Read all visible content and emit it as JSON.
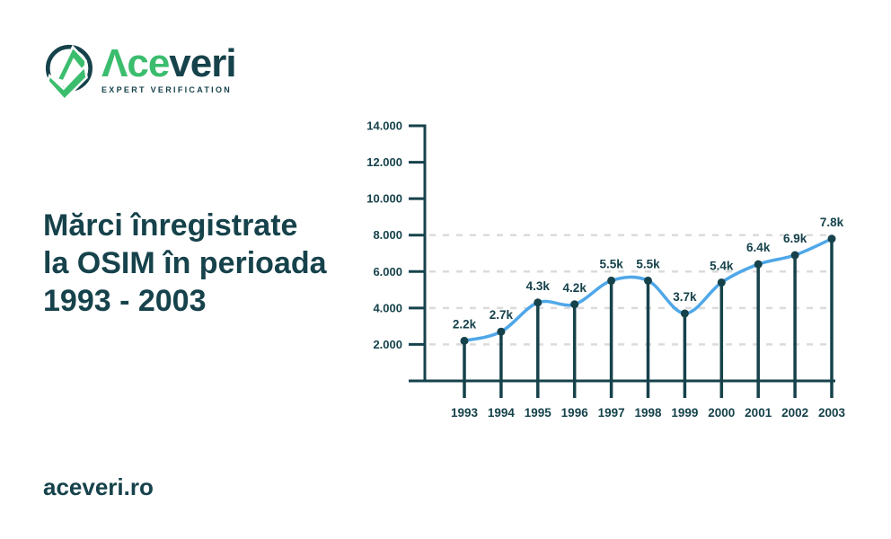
{
  "brand": {
    "name_part1": "Λce",
    "name_part2": "veri",
    "tagline": "EXPERT VERIFICATION"
  },
  "headline": "Mărci înregistrate\nla OSIM în perioada\n1993 - 2003",
  "footer": {
    "website": "aceveri.ro"
  },
  "colors": {
    "dark_teal": "#16424B",
    "brand_green": "#3CBD6E",
    "line_blue": "#4FA7E8",
    "grid_gray": "#DBDBDB",
    "background": "#FFFFFF"
  },
  "chart_data": {
    "type": "line",
    "title": "Mărci înregistrate la OSIM în perioada 1993 - 2003",
    "xlabel": "",
    "ylabel": "",
    "x": [
      "1993",
      "1994",
      "1995",
      "1996",
      "1997",
      "1998",
      "1999",
      "2000",
      "2001",
      "2002",
      "2003"
    ],
    "values": [
      2200,
      2700,
      4300,
      4200,
      5500,
      5500,
      3700,
      5400,
      6400,
      6900,
      7800
    ],
    "point_labels": [
      "2.2k",
      "2.7k",
      "4.3k",
      "4.2k",
      "5.5k",
      "5.5k",
      "3.7k",
      "5.4k",
      "6.4k",
      "6.9k",
      "7.8k"
    ],
    "ylim": [
      0,
      14000
    ],
    "yticks": [
      {
        "value": 2000,
        "label": "2.000"
      },
      {
        "value": 4000,
        "label": "4.000"
      },
      {
        "value": 6000,
        "label": "6.000"
      },
      {
        "value": 8000,
        "label": "8.000"
      },
      {
        "value": 10000,
        "label": "10.000"
      },
      {
        "value": 12000,
        "label": "12.000"
      },
      {
        "value": 14000,
        "label": "14.000"
      }
    ],
    "gridline_values": [
      2000,
      4000,
      6000,
      8000
    ],
    "grid": "dashed-horizontal",
    "legend": "none",
    "marker": "filled-circle-lollipop"
  }
}
